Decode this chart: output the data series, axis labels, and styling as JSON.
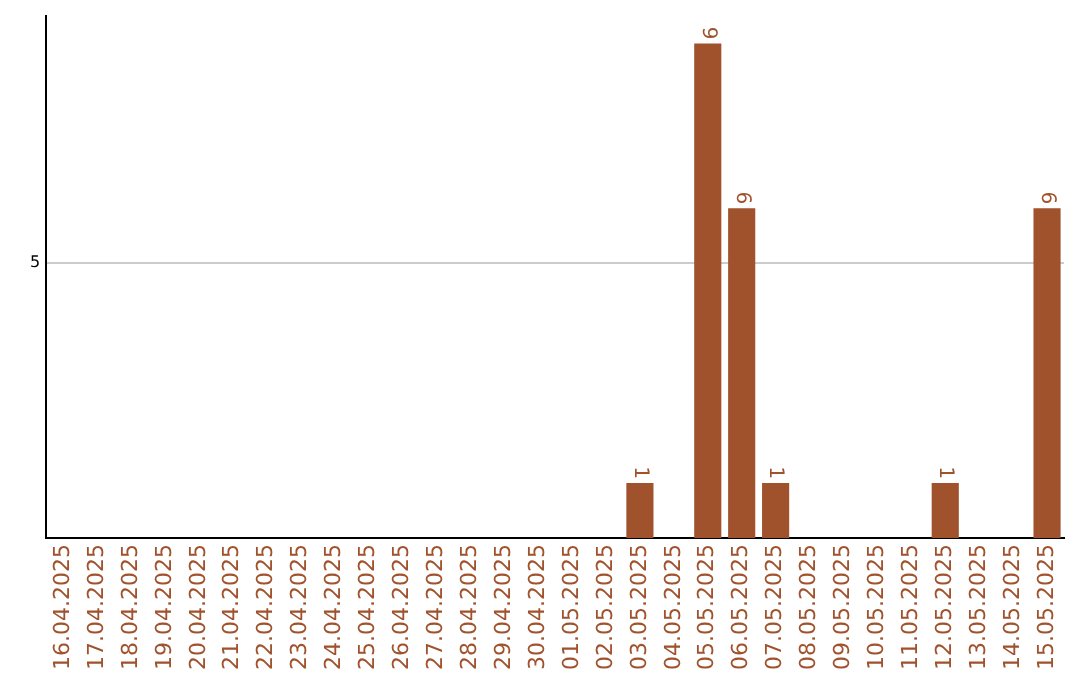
{
  "chart_data": {
    "type": "bar",
    "categories": [
      "16.04.2025",
      "17.04.2025",
      "18.04.2025",
      "19.04.2025",
      "20.04.2025",
      "21.04.2025",
      "22.04.2025",
      "23.04.2025",
      "24.04.2025",
      "25.04.2025",
      "26.04.2025",
      "27.04.2025",
      "28.04.2025",
      "29.04.2025",
      "30.04.2025",
      "01.05.2025",
      "02.05.2025",
      "03.05.2025",
      "04.05.2025",
      "05.05.2025",
      "06.05.2025",
      "07.05.2025",
      "08.05.2025",
      "09.05.2025",
      "10.05.2025",
      "11.05.2025",
      "12.05.2025",
      "13.05.2025",
      "14.05.2025",
      "15.05.2025"
    ],
    "values": [
      null,
      null,
      null,
      null,
      null,
      null,
      null,
      null,
      null,
      null,
      null,
      null,
      null,
      null,
      null,
      null,
      null,
      1,
      null,
      9,
      6,
      1,
      null,
      null,
      null,
      null,
      1,
      null,
      null,
      6
    ],
    "color": "#a0522d",
    "ylim": [
      0,
      9.5
    ],
    "yticks": [
      5
    ],
    "grid": "y",
    "data_labels": true
  }
}
